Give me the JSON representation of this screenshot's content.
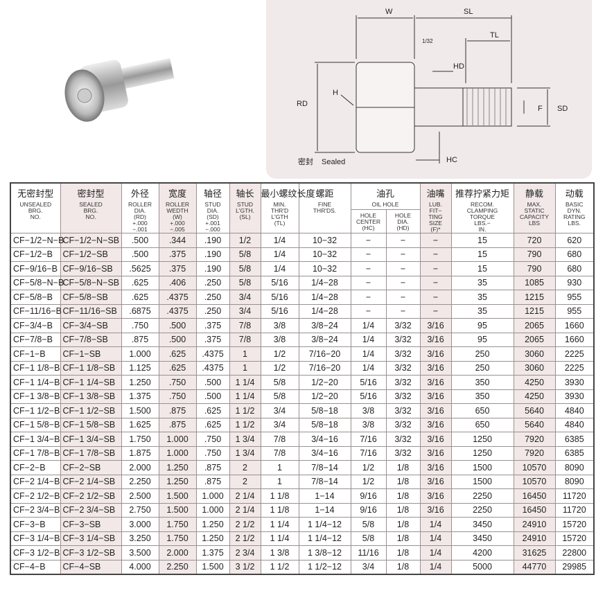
{
  "diagram": {
    "labels": {
      "w": "W",
      "sl": "SL",
      "tl": "TL",
      "gap": "1/32",
      "hd": "HD",
      "h": "H",
      "rd": "RD",
      "f": "F",
      "sd": "SD",
      "hc": "HC",
      "sealed_cn": "密封",
      "sealed_en": "Sealed"
    }
  },
  "headers": [
    {
      "cn": "无密封型",
      "en": "UNSEALED\nBRG.\nNO."
    },
    {
      "cn": "密封型",
      "en": "SEALED\nBRG.\nNO."
    },
    {
      "cn": "外径",
      "en": "ROLLER\nDIA.\n(RD)\n+.000\n−.001"
    },
    {
      "cn": "宽度",
      "en": "ROLLER\nWEDTH\n(W)\n+.000\n−.005"
    },
    {
      "cn": "轴径",
      "en": "STUD\nDIA.\n(SD)\n+.001\n−.000"
    },
    {
      "cn": "轴长",
      "en": "STUD\nL'GTH.\n(SL)"
    },
    {
      "cn": "最小螺纹长度",
      "en": "MIN.\nTHR'D\nL'GTH\n(TL)"
    },
    {
      "cn": "螺距",
      "en": "FINE\nTHR'DS."
    },
    {
      "cn": "油孔",
      "en": "OIL HOLE",
      "sub": [
        {
          "en": "HOLE\nCENTER\n(HC)"
        },
        {
          "en": "HOLE\nDIA.\n(HD)"
        }
      ]
    },
    {
      "cn": "油嘴",
      "en": "LUB.\nFIT−\nTING\nSIZE\n(F)*"
    },
    {
      "cn": "推荐拧紧力矩",
      "en": "RECOM.\nCLAMPING\nTORQUE\nLBS.−\nIN."
    },
    {
      "cn": "静载",
      "en": "MAX.\nSTATIC\nCAPACITY\nLBS"
    },
    {
      "cn": "动载",
      "en": "BASIC\nDYN.\nRATING\nLBS."
    }
  ],
  "rows": [
    [
      "CF−1/2−N−B",
      "CF−1/2−N−SB",
      ".500",
      ".344",
      ".190",
      "1/2",
      "1/4",
      "10−32",
      "−",
      "−",
      "−",
      "15",
      "720",
      "620"
    ],
    [
      "CF−1/2−B",
      "CF−1/2−SB",
      ".500",
      ".375",
      ".190",
      "5/8",
      "1/4",
      "10−32",
      "−",
      "−",
      "−",
      "15",
      "790",
      "680"
    ],
    [
      "CF−9/16−B",
      "CF−9/16−SB",
      ".5625",
      ".375",
      ".190",
      "5/8",
      "1/4",
      "10−32",
      "−",
      "−",
      "−",
      "15",
      "790",
      "680"
    ],
    [
      "CF−5/8−N−B",
      "CF−5/8−N−SB",
      ".625",
      ".406",
      ".250",
      "5/8",
      "5/16",
      "1/4−28",
      "−",
      "−",
      "−",
      "35",
      "1085",
      "930"
    ],
    [
      "CF−5/8−B",
      "CF−5/8−SB",
      ".625",
      ".4375",
      ".250",
      "3/4",
      "5/16",
      "1/4−28",
      "−",
      "−",
      "−",
      "35",
      "1215",
      "955"
    ],
    [
      "CF−11/16−B",
      "CF−11/16−SB",
      ".6875",
      ".4375",
      ".250",
      "3/4",
      "5/16",
      "1/4−28",
      "−",
      "−",
      "−",
      "35",
      "1215",
      "955"
    ],
    [
      "CF−3/4−B",
      "CF−3/4−SB",
      ".750",
      ".500",
      ".375",
      "7/8",
      "3/8",
      "3/8−24",
      "1/4",
      "3/32",
      "3/16",
      "95",
      "2065",
      "1660"
    ],
    [
      "CF−7/8−B",
      "CF−7/8−SB",
      ".875",
      ".500",
      ".375",
      "7/8",
      "3/8",
      "3/8−24",
      "1/4",
      "3/32",
      "3/16",
      "95",
      "2065",
      "1660"
    ],
    [
      "CF−1−B",
      "CF−1−SB",
      "1.000",
      ".625",
      ".4375",
      "1",
      "1/2",
      "7/16−20",
      "1/4",
      "3/32",
      "3/16",
      "250",
      "3060",
      "2225"
    ],
    [
      "CF−1 1/8−B",
      "CF−1 1/8−SB",
      "1.125",
      ".625",
      ".4375",
      "1",
      "1/2",
      "7/16−20",
      "1/4",
      "3/32",
      "3/16",
      "250",
      "3060",
      "2225"
    ],
    [
      "CF−1 1/4−B",
      "CF−1 1/4−SB",
      "1.250",
      ".750",
      ".500",
      "1 1/4",
      "5/8",
      "1/2−20",
      "5/16",
      "3/32",
      "3/16",
      "350",
      "4250",
      "3930"
    ],
    [
      "CF−1 3/8−B",
      "CF−1 3/8−SB",
      "1.375",
      ".750",
      ".500",
      "1 1/4",
      "5/8",
      "1/2−20",
      "5/16",
      "3/32",
      "3/16",
      "350",
      "4250",
      "3930"
    ],
    [
      "CF−1 1/2−B",
      "CF−1 1/2−SB",
      "1.500",
      ".875",
      ".625",
      "1 1/2",
      "3/4",
      "5/8−18",
      "3/8",
      "3/32",
      "3/16",
      "650",
      "5640",
      "4840"
    ],
    [
      "CF−1 5/8−B",
      "CF−1 5/8−SB",
      "1.625",
      ".875",
      ".625",
      "1 1/2",
      "3/4",
      "5/8−18",
      "3/8",
      "3/32",
      "3/16",
      "650",
      "5640",
      "4840"
    ],
    [
      "CF−1 3/4−B",
      "CF−1 3/4−SB",
      "1.750",
      "1.000",
      ".750",
      "1 3/4",
      "7/8",
      "3/4−16",
      "7/16",
      "3/32",
      "3/16",
      "1250",
      "7920",
      "6385"
    ],
    [
      "CF−1 7/8−B",
      "CF−1 7/8−SB",
      "1.875",
      "1.000",
      ".750",
      "1 3/4",
      "7/8",
      "3/4−16",
      "7/16",
      "3/32",
      "3/16",
      "1250",
      "7920",
      "6385"
    ],
    [
      "CF−2−B",
      "CF−2−SB",
      "2.000",
      "1.250",
      ".875",
      "2",
      "1",
      "7/8−14",
      "1/2",
      "1/8",
      "3/16",
      "1500",
      "10570",
      "8090"
    ],
    [
      "CF−2 1/4−B",
      "CF−2 1/4−SB",
      "2.250",
      "1.250",
      ".875",
      "2",
      "1",
      "7/8−14",
      "1/2",
      "1/8",
      "3/16",
      "1500",
      "10570",
      "8090"
    ],
    [
      "CF−2 1/2−B",
      "CF−2 1/2−SB",
      "2.500",
      "1.500",
      "1.000",
      "2 1/4",
      "1 1/8",
      "1−14",
      "9/16",
      "1/8",
      "3/16",
      "2250",
      "16450",
      "11720"
    ],
    [
      "CF−2 3/4−B",
      "CF−2 3/4−SB",
      "2.750",
      "1.500",
      "1.000",
      "2 1/4",
      "1 1/8",
      "1−14",
      "9/16",
      "1/8",
      "3/16",
      "2250",
      "16450",
      "11720"
    ],
    [
      "CF−3−B",
      "CF−3−SB",
      "3.000",
      "1.750",
      "1.250",
      "2 1/2",
      "1 1/4",
      "1 1/4−12",
      "5/8",
      "1/8",
      "1/4",
      "3450",
      "24910",
      "15720"
    ],
    [
      "CF−3 1/4−B",
      "CF−3 1/4−SB",
      "3.250",
      "1.750",
      "1.250",
      "2 1/2",
      "1 1/4",
      "1 1/4−12",
      "5/8",
      "1/8",
      "1/4",
      "3450",
      "24910",
      "15720"
    ],
    [
      "CF−3 1/2−B",
      "CF−3 1/2−SB",
      "3.500",
      "2.000",
      "1.375",
      "2 3/4",
      "1 3/8",
      "1 3/8−12",
      "11/16",
      "1/8",
      "1/4",
      "4200",
      "31625",
      "22800"
    ],
    [
      "CF−4−B",
      "CF−4−SB",
      "4.000",
      "2.250",
      "1.500",
      "3 1/2",
      "1 1/2",
      "1 1/2−12",
      "3/4",
      "1/8",
      "1/4",
      "5000",
      "44770",
      "29985"
    ]
  ],
  "colors": {
    "shade": "#f2e8e8",
    "diagram_bg": "#f0eaea"
  }
}
